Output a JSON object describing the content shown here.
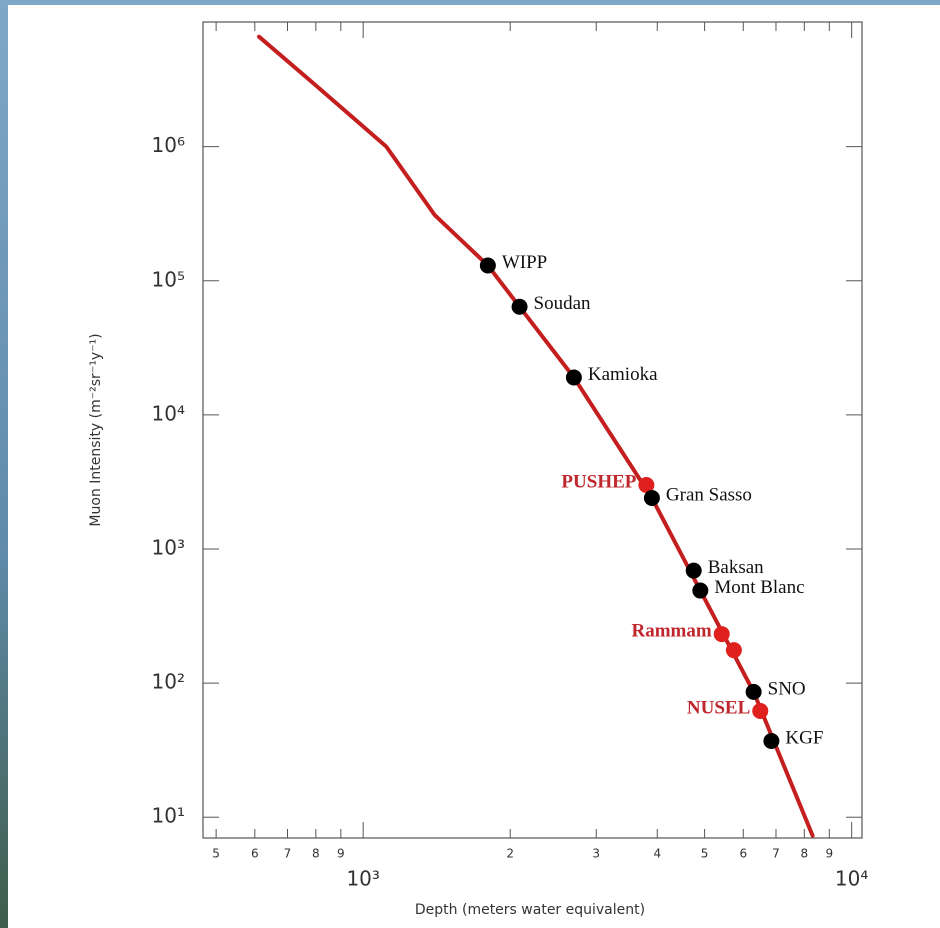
{
  "chart_data": {
    "type": "scatter",
    "x_label": "Depth (meters water equivalent)",
    "y_label": "Muon Intensity (m⁻²sr⁻¹y⁻¹)",
    "log_x": true,
    "log_y": true,
    "xlim": [
      470,
      10500
    ],
    "ylim": [
      7,
      8500000
    ],
    "xticks": [
      {
        "value": 500,
        "label": "5"
      },
      {
        "value": 600,
        "label": "6"
      },
      {
        "value": 700,
        "label": "7"
      },
      {
        "value": 800,
        "label": "8"
      },
      {
        "value": 900,
        "label": "9"
      },
      {
        "value": 1000,
        "label": "10³"
      },
      {
        "value": 2000,
        "label": "2"
      },
      {
        "value": 3000,
        "label": "3"
      },
      {
        "value": 4000,
        "label": "4"
      },
      {
        "value": 5000,
        "label": "5"
      },
      {
        "value": 6000,
        "label": "6"
      },
      {
        "value": 7000,
        "label": "7"
      },
      {
        "value": 8000,
        "label": "8"
      },
      {
        "value": 9000,
        "label": "9"
      },
      {
        "value": 10000,
        "label": "10⁴"
      }
    ],
    "yticks": [
      {
        "value": 10,
        "label": "10¹"
      },
      {
        "value": 100,
        "label": "10²"
      },
      {
        "value": 1000,
        "label": "10³"
      },
      {
        "value": 10000,
        "label": "10⁴"
      },
      {
        "value": 100000,
        "label": "10⁵"
      },
      {
        "value": 1000000,
        "label": "10⁶"
      }
    ],
    "curve": {
      "color": "#c41e1e",
      "x": [
        612,
        801,
        1115,
        1400,
        1800,
        2090,
        2700,
        3900,
        4900,
        6300,
        8320
      ],
      "values": [
        6600000,
        2850000,
        1000000,
        310000,
        130000,
        64000,
        19000,
        2400,
        490,
        86,
        7.3
      ]
    },
    "points": {
      "x": [
        1800,
        2090,
        2700,
        3800,
        3900,
        4750,
        4900,
        5420,
        5740,
        6300,
        6500,
        6850
      ],
      "values": [
        130000,
        64000,
        19000,
        3000,
        2400,
        690,
        490,
        232,
        176,
        86,
        62,
        37
      ],
      "labels": [
        "WIPP",
        "Soudan",
        "Kamioka",
        "PUSHEP",
        "Gran Sasso",
        "Baksan",
        "Mont Blanc",
        "Rammam",
        null,
        "SNO",
        "NUSEL",
        "KGF"
      ],
      "colors": [
        "#000000",
        "#000000",
        "#000000",
        "#e0201c",
        "#000000",
        "#000000",
        "#000000",
        "#e0201c",
        "#e0201c",
        "#000000",
        "#e0201c",
        "#000000"
      ]
    }
  }
}
